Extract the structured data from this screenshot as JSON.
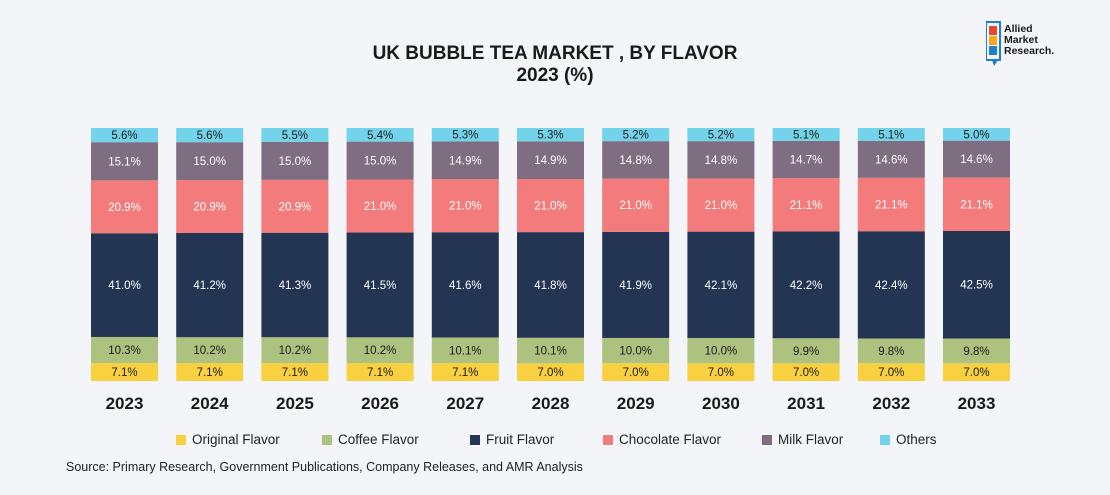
{
  "chart_data": {
    "type": "bar",
    "stacked": true,
    "title": "UK BUBBLE TEA MARKET , BY FLAVOR",
    "subtitle": "2023 (%)",
    "categories": [
      "2023",
      "2024",
      "2025",
      "2026",
      "2027",
      "2028",
      "2029",
      "2030",
      "2031",
      "2032",
      "2033"
    ],
    "series": [
      {
        "name": "Original Flavor",
        "color": "#f9d03f",
        "values": [
          7.1,
          7.1,
          7.1,
          7.1,
          7.1,
          7.0,
          7.0,
          7.0,
          7.0,
          7.0,
          7.0
        ]
      },
      {
        "name": "Coffee Flavor",
        "color": "#aec27f",
        "values": [
          10.3,
          10.2,
          10.2,
          10.2,
          10.1,
          10.1,
          10.0,
          10.0,
          9.9,
          9.8,
          9.8
        ]
      },
      {
        "name": "Fruit Flavor",
        "color": "#243553",
        "values": [
          41.0,
          41.2,
          41.3,
          41.5,
          41.6,
          41.8,
          41.9,
          42.1,
          42.2,
          42.4,
          42.5
        ]
      },
      {
        "name": "Chocolate Flavor",
        "color": "#f47b7b",
        "values": [
          20.9,
          20.9,
          20.9,
          21.0,
          21.0,
          21.0,
          21.0,
          21.0,
          21.1,
          21.1,
          21.1
        ]
      },
      {
        "name": "Milk Flavor",
        "color": "#7f6e81",
        "values": [
          15.1,
          15.0,
          15.0,
          15.0,
          14.9,
          14.9,
          14.8,
          14.8,
          14.7,
          14.6,
          14.6
        ]
      },
      {
        "name": "Others",
        "color": "#73d3ea",
        "values": [
          5.6,
          5.6,
          5.5,
          5.4,
          5.3,
          5.3,
          5.2,
          5.2,
          5.1,
          5.1,
          5.0
        ]
      }
    ],
    "value_suffix": "%",
    "ylim": [
      0,
      100
    ],
    "grid": false,
    "legend_position": "bottom"
  },
  "logo": {
    "line1": "Allied",
    "line2": "Market",
    "line3": "Research."
  },
  "source": "Source: Primary Research, Government Publications, Company Releases, and AMR Analysis"
}
